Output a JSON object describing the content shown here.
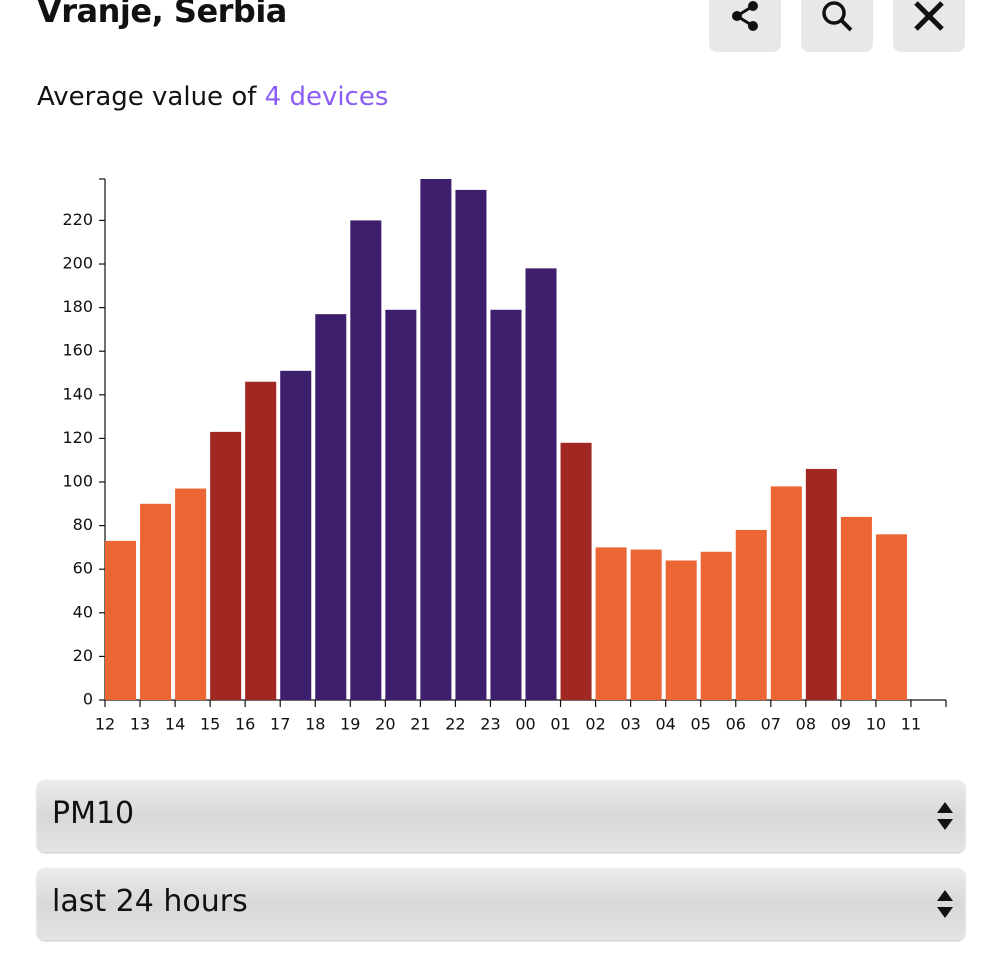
{
  "header": {
    "title": "Vranje, Serbia"
  },
  "subtitle": {
    "text": "Average value of",
    "link": "4 devices"
  },
  "chart_data": {
    "type": "bar",
    "categories": [
      "12",
      "13",
      "14",
      "15",
      "16",
      "17",
      "18",
      "19",
      "20",
      "21",
      "22",
      "23",
      "00",
      "01",
      "02",
      "03",
      "04",
      "05",
      "06",
      "07",
      "08",
      "09",
      "10",
      "11"
    ],
    "values": [
      73,
      90,
      97,
      123,
      146,
      151,
      177,
      220,
      179,
      239,
      234,
      179,
      198,
      118,
      70,
      69,
      64,
      68,
      78,
      98,
      106,
      84,
      76,
      null
    ],
    "colors": [
      "#ec6633",
      "#ec6633",
      "#ec6633",
      "#a12822",
      "#a12822",
      "#3d1f6e",
      "#3d1f6e",
      "#3d1f6e",
      "#3d1f6e",
      "#3d1f6e",
      "#3d1f6e",
      "#3d1f6e",
      "#3d1f6e",
      "#a12822",
      "#ec6633",
      "#ec6633",
      "#ec6633",
      "#ec6633",
      "#ec6633",
      "#ec6633",
      "#a12822",
      "#ec6633",
      "#ec6633",
      "#ec6633"
    ],
    "ylim": [
      0,
      239
    ],
    "yticks": [
      0,
      20,
      40,
      60,
      80,
      100,
      120,
      140,
      160,
      180,
      200,
      220
    ]
  },
  "controls": {
    "pollutant": "PM10",
    "period": "last 24 hours"
  }
}
